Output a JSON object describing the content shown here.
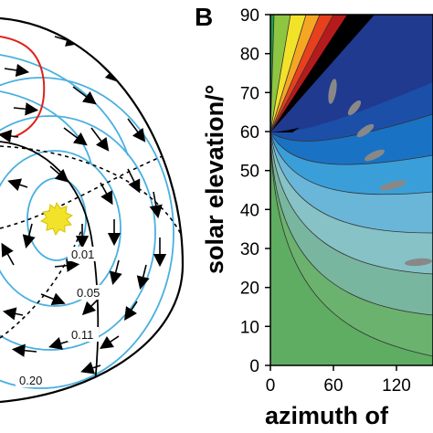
{
  "panel_b": {
    "letter": "B",
    "ylabel": "solar elevation/°",
    "xlabel": "azimuth of",
    "y_ticks": [
      "90",
      "80",
      "70",
      "60",
      "50",
      "40",
      "30",
      "20",
      "10",
      "0"
    ],
    "x_ticks": [
      "0",
      "60",
      "120"
    ]
  },
  "panel_a": {
    "contour_labels": [
      "0.01",
      "0.05",
      "0.11",
      "0.20"
    ]
  },
  "colors": {
    "contour_blue": "#4ab0e0",
    "red_curve": "#e0201a",
    "sun": "#f2e22a",
    "background_green": "#5fad62",
    "insect": "#888888"
  }
}
